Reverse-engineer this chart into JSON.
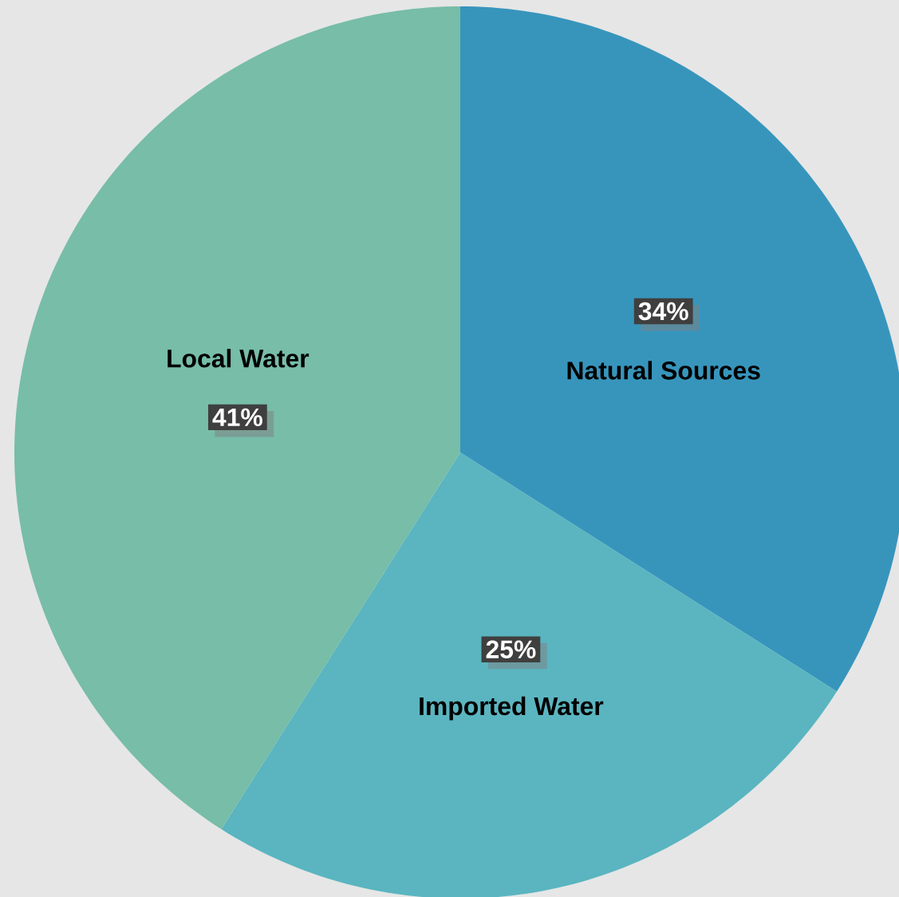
{
  "chart_data": {
    "type": "pie",
    "categories": [
      "Natural Sources",
      "Imported Water",
      "Local Water"
    ],
    "values": [
      34,
      25,
      41
    ],
    "colors": [
      "#3795bc",
      "#5ab5c0",
      "#77bda8"
    ],
    "value_labels": [
      "34%",
      "25%",
      "41%"
    ]
  }
}
